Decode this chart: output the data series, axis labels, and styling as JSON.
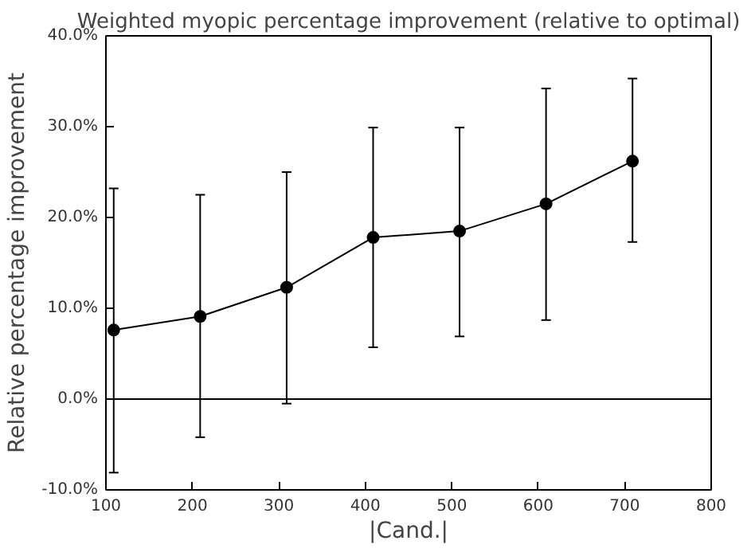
{
  "chart_data": {
    "type": "line",
    "title": "Weighted myopic percentage improvement (relative to optimal)",
    "xlabel": "|Cand.|",
    "ylabel": "Relative percentage improvement",
    "x": [
      109,
      209,
      309,
      409,
      509,
      609,
      709
    ],
    "series": [
      {
        "color": "#000000",
        "values": [
          7.6,
          9.1,
          12.3,
          17.8,
          18.5,
          21.5,
          26.2
        ],
        "errors": [
          [
            -8.1,
            23.2
          ],
          [
            -4.2,
            22.5
          ],
          [
            -0.5,
            25.0
          ],
          [
            5.7,
            29.9
          ],
          [
            6.9,
            29.9
          ],
          [
            8.7,
            34.2
          ],
          [
            17.3,
            35.3
          ]
        ]
      }
    ],
    "xlim": [
      100,
      800
    ],
    "xticks": [
      100,
      200,
      300,
      400,
      500,
      600,
      700,
      800
    ],
    "ylim": [
      -10,
      40
    ],
    "yticks": [
      {
        "value": -10,
        "label": "-10.0%"
      },
      {
        "value": 0,
        "label": "0.0%"
      },
      {
        "value": 10,
        "label": "10.0%"
      },
      {
        "value": 20,
        "label": "20.0%"
      },
      {
        "value": 30,
        "label": "30.0%"
      },
      {
        "value": 40,
        "label": "40.0%"
      }
    ],
    "ref_lines": [
      {
        "axis": "y",
        "value": 0,
        "color": "#000000"
      }
    ],
    "marker": "circle",
    "line_style": "solid",
    "grid": false
  }
}
